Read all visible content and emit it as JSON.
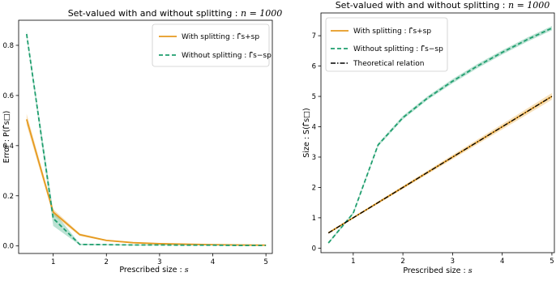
{
  "chart_data": [
    {
      "type": "line",
      "title_prefix": "Set-valued with and without splitting : ",
      "title_math": "n = 1000",
      "xlabel_prefix": "Prescribed size : ",
      "xlabel_math": "s",
      "ylabel": "Error : P(Γ̂s□)",
      "xlim": [
        0.35,
        5.12
      ],
      "ylim": [
        -0.03,
        0.9
      ],
      "xticks": [
        1,
        2,
        3,
        4,
        5
      ],
      "yticks": [
        0.0,
        0.2,
        0.4,
        0.6,
        0.8
      ],
      "ytick_labels": [
        "0.0",
        "0.2",
        "0.4",
        "0.6",
        "0.8"
      ],
      "x": [
        0.5,
        1,
        1.5,
        2,
        2.5,
        3,
        3.5,
        4,
        4.5,
        5
      ],
      "series": [
        {
          "name": "With splitting : Γ̂s+sp",
          "color": "#e69a1f",
          "style": "solid",
          "values": [
            0.505,
            0.135,
            0.045,
            0.022,
            0.013,
            0.009,
            0.007,
            0.005,
            0.004,
            0.003
          ],
          "band": [
            0.022,
            0.012,
            0.005,
            0.003,
            0.002,
            0.002,
            0.001,
            0.001,
            0.001,
            0.001
          ]
        },
        {
          "name": "Without splitting : Γ̂s−sp",
          "color": "#1f9e6e",
          "style": "dashed",
          "values": [
            0.845,
            0.11,
            0.006,
            0.005,
            0.004,
            0.004,
            0.003,
            0.003,
            0.002,
            0.002
          ],
          "band": [
            0.012,
            0.03,
            0.003,
            0.002,
            0.002,
            0.002,
            0.001,
            0.001,
            0.001,
            0.001
          ]
        }
      ],
      "legend_placement": "top-right",
      "grid": false
    },
    {
      "type": "line",
      "title_prefix": "Set-valued with and without splitting : ",
      "title_math": "n = 1000",
      "xlabel_prefix": "Prescribed size : ",
      "xlabel_math": "s",
      "ylabel": "Size : S(Γ̂s□)",
      "xlim": [
        0.35,
        5.05
      ],
      "ylim": [
        -0.15,
        7.75
      ],
      "xticks": [
        1,
        2,
        3,
        4,
        5
      ],
      "yticks": [
        0,
        1,
        2,
        3,
        4,
        5,
        6,
        7
      ],
      "ytick_labels": [
        "0",
        "1",
        "2",
        "3",
        "4",
        "5",
        "6",
        "7"
      ],
      "x": [
        0.5,
        1,
        1.5,
        2,
        2.5,
        3,
        3.5,
        4,
        4.5,
        5
      ],
      "series": [
        {
          "name": "With splitting : Γ̂s+sp",
          "color": "#e69a1f",
          "style": "solid",
          "values": [
            0.5,
            1.0,
            1.5,
            2.0,
            2.5,
            3.0,
            3.5,
            4.0,
            4.5,
            5.0
          ],
          "band": [
            0.03,
            0.03,
            0.04,
            0.05,
            0.06,
            0.07,
            0.08,
            0.09,
            0.1,
            0.11
          ]
        },
        {
          "name": "Without splitting : Γ̂s−sp",
          "color": "#1f9e6e",
          "style": "dashed",
          "values": [
            0.17,
            1.15,
            3.4,
            4.3,
            4.95,
            5.5,
            6.0,
            6.45,
            6.87,
            7.25
          ],
          "band": [
            0.03,
            0.04,
            0.05,
            0.06,
            0.06,
            0.07,
            0.07,
            0.07,
            0.07,
            0.07
          ]
        },
        {
          "name": "Theoretical relation",
          "color": "#000000",
          "style": "dashdot",
          "values": [
            0.5,
            1.0,
            1.5,
            2.0,
            2.5,
            3.0,
            3.5,
            4.0,
            4.5,
            5.0
          ]
        }
      ],
      "legend_placement": "top-left",
      "grid": false
    }
  ]
}
